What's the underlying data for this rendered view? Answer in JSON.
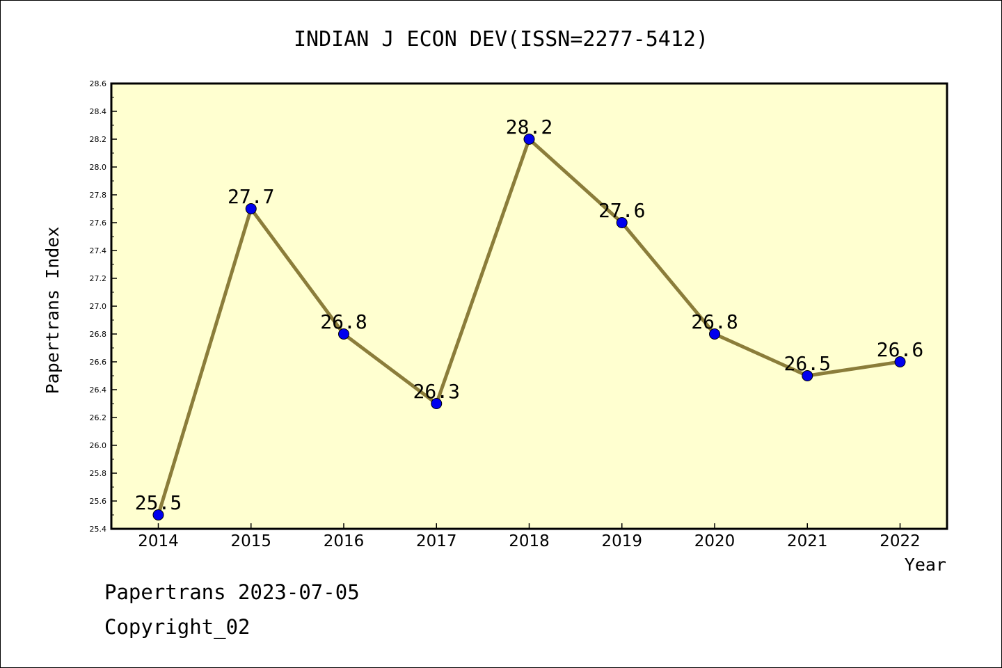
{
  "chart_data": {
    "type": "line",
    "title": "INDIAN J ECON DEV(ISSN=2277-5412)",
    "xlabel": "Year",
    "ylabel": "Papertrans Index",
    "x": [
      "2014",
      "2015",
      "2016",
      "2017",
      "2018",
      "2019",
      "2020",
      "2021",
      "2022"
    ],
    "series": [
      {
        "values": [
          25.5,
          27.7,
          26.8,
          26.3,
          28.2,
          27.6,
          26.8,
          26.5,
          26.6
        ],
        "labels": [
          "25.5",
          "27.7",
          "26.8",
          "26.3",
          "28.2",
          "27.6",
          "26.8",
          "26.5",
          "26.6"
        ]
      }
    ],
    "ylim": [
      25.4,
      28.6
    ],
    "yticks": [
      "25.4",
      "25.6",
      "25.8",
      "26.0",
      "26.2",
      "26.4",
      "26.6",
      "26.8",
      "27.0",
      "27.2",
      "27.4",
      "27.6",
      "27.8",
      "28.0",
      "28.2",
      "28.4",
      "28.6"
    ],
    "grid": false,
    "legend": "none",
    "colors": {
      "plot_background": "#ffffd0",
      "line": "#8b7d3a",
      "marker": "#0000ee",
      "axis": "#000000"
    }
  },
  "footer": {
    "line1": "Papertrans 2023-07-05",
    "line2": "Copyright_02"
  }
}
